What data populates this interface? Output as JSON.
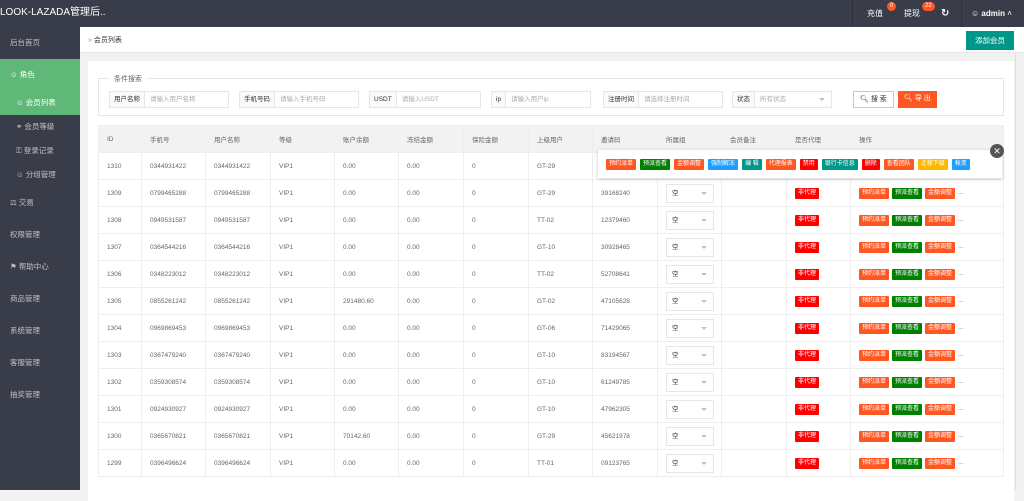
{
  "app": {
    "title": "LOOK-LAZADA管理后..."
  },
  "topbar": {
    "recharge": "充值",
    "recharge_count": "0",
    "withdraw": "提现",
    "withdraw_count": "22",
    "refresh_icon": "refresh-icon",
    "user": "admin"
  },
  "sidebar": {
    "items": [
      {
        "label": "后台首页",
        "type": "top"
      },
      {
        "label": "角色",
        "type": "top",
        "active": true,
        "icon": "user-icon"
      },
      {
        "label": "会员列表",
        "type": "sub",
        "active": true,
        "icon": "user-icon"
      },
      {
        "label": "会员等级",
        "type": "sub",
        "icon": "link-icon"
      },
      {
        "label": "登录记录",
        "type": "sub",
        "icon": "lock-icon"
      },
      {
        "label": "分组管理",
        "type": "sub",
        "icon": "group-icon"
      },
      {
        "label": "交易",
        "type": "top",
        "icon": "scale-icon"
      },
      {
        "label": "权限管理",
        "type": "top"
      },
      {
        "label": "帮助中心",
        "type": "top",
        "icon": "flag-icon"
      },
      {
        "label": "商品管理",
        "type": "top"
      },
      {
        "label": "系统管理",
        "type": "top"
      },
      {
        "label": "客服管理",
        "type": "top"
      },
      {
        "label": "抽奖管理",
        "type": "top"
      }
    ]
  },
  "breadcrumb": "会员列表",
  "add_button": "添加会员",
  "search": {
    "legend": "条件搜索",
    "fields": [
      {
        "label": "用户名称",
        "placeholder": "请输入用户名称"
      },
      {
        "label": "手机号码",
        "placeholder": "请输入手机号码"
      },
      {
        "label": "USDT",
        "placeholder": "请输入USDT"
      },
      {
        "label": "ip",
        "placeholder": "请输入用户ip"
      },
      {
        "label": "注册时间",
        "placeholder": "请选择注册时间"
      },
      {
        "label": "状态",
        "placeholder": "所有状态"
      }
    ],
    "search_btn": "搜 索",
    "export_btn": "导 出"
  },
  "colors": {
    "orange": "#FF5722",
    "green": "#008000",
    "blue": "#1E9FFF",
    "teal": "#009688",
    "red": "#FF0000",
    "yellow": "#FFB800",
    "sidebar_active": "#5FB878"
  },
  "table": {
    "headers": [
      "ID",
      "手机号",
      "用户名称",
      "等级",
      "账户余额",
      "冻结金额",
      "保险金额",
      "上级用户",
      "邀请码",
      "所属组",
      "会员备注",
      "是否代理",
      "操作"
    ],
    "rows": [
      [
        "1310",
        "0344931422",
        "0344931422",
        "VIP1",
        "0.00",
        "0.00",
        "0",
        "GT-29",
        "",
        "",
        "",
        "",
        ""
      ],
      [
        "1309",
        "0799465288",
        "0799465288",
        "VIP1",
        "0.00",
        "0.00",
        "0",
        "GT-29",
        "39168240",
        "空",
        "",
        "非代理",
        ""
      ],
      [
        "1308",
        "0949531587",
        "0949531587",
        "VIP1",
        "0.00",
        "0.00",
        "0",
        "TT-02",
        "12379460",
        "空",
        "",
        "非代理",
        ""
      ],
      [
        "1307",
        "0364544216",
        "0364544216",
        "VIP1",
        "0.00",
        "0.00",
        "0",
        "GT-10",
        "30928465",
        "空",
        "",
        "非代理",
        ""
      ],
      [
        "1306",
        "0348223012",
        "0348223012",
        "VIP1",
        "0.00",
        "0.00",
        "0",
        "TT-02",
        "52708641",
        "空",
        "",
        "非代理",
        ""
      ],
      [
        "1305",
        "0855261242",
        "0855261242",
        "VIP1",
        "291480.60",
        "0.00",
        "0",
        "GT-02",
        "47105628",
        "空",
        "",
        "非代理",
        ""
      ],
      [
        "1304",
        "0969869453",
        "0969869453",
        "VIP1",
        "0.00",
        "0.00",
        "0",
        "GT-06",
        "71429065",
        "空",
        "",
        "非代理",
        ""
      ],
      [
        "1303",
        "0367479240",
        "0367479240",
        "VIP1",
        "0.00",
        "0.00",
        "0",
        "GT-10",
        "83194567",
        "空",
        "",
        "非代理",
        ""
      ],
      [
        "1302",
        "0359308574",
        "0359308574",
        "VIP1",
        "0.00",
        "0.00",
        "0",
        "GT-10",
        "61249785",
        "空",
        "",
        "非代理",
        ""
      ],
      [
        "1301",
        "0924930927",
        "0924930927",
        "VIP1",
        "0.00",
        "0.00",
        "0",
        "GT-10",
        "47962305",
        "空",
        "",
        "非代理",
        ""
      ],
      [
        "1300",
        "0365670821",
        "0365670821",
        "VIP1",
        "70142.60",
        "0.00",
        "0",
        "GT-29",
        "45621978",
        "空",
        "",
        "非代理",
        ""
      ],
      [
        "1299",
        "0396496624",
        "0396496624",
        "VIP1",
        "0.00",
        "0.00",
        "0",
        "TT-01",
        "09123765",
        "空",
        "",
        "非代理",
        ""
      ]
    ],
    "row_actions": [
      {
        "label": "预约派单",
        "color": "#FF5722"
      },
      {
        "label": "预派查看",
        "color": "#008000"
      },
      {
        "label": "金额调整",
        "color": "#FF5722"
      }
    ],
    "more": "..."
  },
  "popup_actions": [
    {
      "label": "预约派单",
      "color": "#FF5722"
    },
    {
      "label": "预派查看",
      "color": "#008000"
    },
    {
      "label": "金额调整",
      "color": "#FF5722"
    },
    {
      "label": "强制解冻",
      "color": "#1E9FFF"
    },
    {
      "label": "编 辑",
      "color": "#009688"
    },
    {
      "label": "代理报表",
      "color": "#FF5722"
    },
    {
      "label": "禁用",
      "color": "#FF0000"
    },
    {
      "label": "银行卡信息",
      "color": "#009688"
    },
    {
      "label": "删除",
      "color": "#FF0000"
    },
    {
      "label": "查看团队",
      "color": "#FF5722"
    },
    {
      "label": "迁移下级",
      "color": "#FFB800"
    },
    {
      "label": "帐变",
      "color": "#1E9FFF"
    }
  ]
}
